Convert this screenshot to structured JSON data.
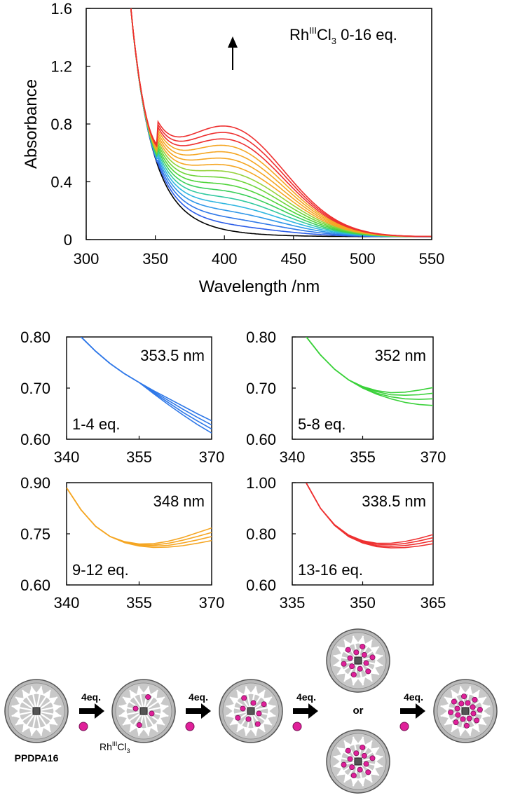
{
  "chart_data": [
    {
      "id": "main",
      "type": "line",
      "title": "",
      "xlabel": "Wavelength /nm",
      "ylabel": "Absorbance",
      "xlim": [
        300,
        550
      ],
      "ylim": [
        0,
        1.6
      ],
      "xticks": [
        300,
        350,
        400,
        450,
        500,
        550
      ],
      "yticks": [
        0,
        0.4,
        0.8,
        1.2,
        1.6
      ],
      "ytick_labels": [
        "0",
        "0.4",
        "0.8",
        "1.2",
        "1.6"
      ],
      "annotation": {
        "prefix": "Rh",
        "sup": "III",
        "mid": "Cl",
        "sub": "3",
        "suffix": " 0-16 eq."
      },
      "arrow": "up",
      "model": {
        "peak_nm": 404,
        "width_nm": 40,
        "base_peak_height": 0.0,
        "max_peak_height": 0.72,
        "iso_nm": 352,
        "iso_abs": 0.72
      },
      "series_count": 17,
      "colors": [
        "#000000",
        "#2a5ce8",
        "#2f78e8",
        "#2f97e8",
        "#2fb6e0",
        "#32c9a0",
        "#3bcf5a",
        "#4fd43a",
        "#6fd53a",
        "#95d23a",
        "#f5a623",
        "#f5a623",
        "#f5a623",
        "#f5a623",
        "#ee3030",
        "#ee3030",
        "#ee3030"
      ]
    },
    {
      "id": "inset1",
      "type": "line",
      "label": "353.5 nm",
      "range_label": "1-4 eq.",
      "xlim": [
        340,
        370
      ],
      "ylim": [
        0.6,
        0.8
      ],
      "xticks": [
        340,
        355,
        370
      ],
      "yticks": [
        0.6,
        0.7,
        0.8
      ],
      "ytick_labels": [
        "0.60",
        "0.70",
        "0.80"
      ],
      "color": "#2f78e8",
      "curves": [
        {
          "x": [
            343,
            346,
            349,
            352,
            355,
            358,
            361,
            364,
            367,
            370
          ],
          "y": [
            0.8,
            0.772,
            0.748,
            0.728,
            0.711,
            0.695,
            0.68,
            0.665,
            0.65,
            0.636
          ]
        },
        {
          "x": [
            343,
            346,
            349,
            352,
            355,
            358,
            361,
            364,
            367,
            370
          ],
          "y": [
            0.8,
            0.772,
            0.748,
            0.728,
            0.711,
            0.693,
            0.676,
            0.659,
            0.643,
            0.628
          ]
        },
        {
          "x": [
            343,
            346,
            349,
            352,
            355,
            358,
            361,
            364,
            367,
            370
          ],
          "y": [
            0.8,
            0.772,
            0.748,
            0.728,
            0.711,
            0.691,
            0.672,
            0.653,
            0.636,
            0.62
          ]
        },
        {
          "x": [
            343,
            346,
            349,
            352,
            355,
            358,
            361,
            364,
            367,
            370
          ],
          "y": [
            0.8,
            0.772,
            0.748,
            0.728,
            0.711,
            0.689,
            0.668,
            0.648,
            0.629,
            0.612
          ]
        }
      ]
    },
    {
      "id": "inset2",
      "type": "line",
      "label": "352 nm",
      "range_label": "5-8 eq.",
      "xlim": [
        340,
        370
      ],
      "ylim": [
        0.6,
        0.8
      ],
      "xticks": [
        340,
        355,
        370
      ],
      "yticks": [
        0.6,
        0.7,
        0.8
      ],
      "ytick_labels": [
        "0.60",
        "0.70",
        "0.80"
      ],
      "color": "#3ad13a",
      "curves": [
        {
          "x": [
            343,
            346,
            349,
            352,
            355,
            358,
            361,
            364,
            367,
            370
          ],
          "y": [
            0.8,
            0.765,
            0.737,
            0.716,
            0.703,
            0.695,
            0.691,
            0.692,
            0.696,
            0.701
          ]
        },
        {
          "x": [
            343,
            346,
            349,
            352,
            355,
            358,
            361,
            364,
            367,
            370
          ],
          "y": [
            0.8,
            0.765,
            0.737,
            0.716,
            0.702,
            0.693,
            0.687,
            0.686,
            0.687,
            0.69
          ]
        },
        {
          "x": [
            343,
            346,
            349,
            352,
            355,
            358,
            361,
            364,
            367,
            370
          ],
          "y": [
            0.8,
            0.765,
            0.737,
            0.716,
            0.701,
            0.69,
            0.683,
            0.679,
            0.678,
            0.679
          ]
        },
        {
          "x": [
            343,
            346,
            349,
            352,
            355,
            358,
            361,
            364,
            367,
            370
          ],
          "y": [
            0.8,
            0.765,
            0.737,
            0.716,
            0.7,
            0.688,
            0.679,
            0.672,
            0.668,
            0.666
          ]
        }
      ]
    },
    {
      "id": "inset3",
      "type": "line",
      "label": "348 nm",
      "range_label": "9-12 eq.",
      "xlim": [
        340,
        370
      ],
      "ylim": [
        0.6,
        0.9
      ],
      "xticks": [
        340,
        355,
        370
      ],
      "yticks": [
        0.6,
        0.75,
        0.9
      ],
      "ytick_labels": [
        "0.60",
        "0.75",
        "0.90"
      ],
      "color": "#f5a623",
      "curves": [
        {
          "x": [
            340,
            343,
            346,
            349,
            352,
            355,
            358,
            361,
            364,
            367,
            370
          ],
          "y": [
            0.885,
            0.82,
            0.772,
            0.742,
            0.727,
            0.72,
            0.721,
            0.728,
            0.739,
            0.753,
            0.767
          ]
        },
        {
          "x": [
            340,
            343,
            346,
            349,
            352,
            355,
            358,
            361,
            364,
            367,
            370
          ],
          "y": [
            0.885,
            0.82,
            0.772,
            0.742,
            0.726,
            0.718,
            0.717,
            0.722,
            0.731,
            0.742,
            0.754
          ]
        },
        {
          "x": [
            340,
            343,
            346,
            349,
            352,
            355,
            358,
            361,
            364,
            367,
            370
          ],
          "y": [
            0.885,
            0.82,
            0.772,
            0.742,
            0.725,
            0.716,
            0.714,
            0.716,
            0.723,
            0.732,
            0.742
          ]
        },
        {
          "x": [
            340,
            343,
            346,
            349,
            352,
            355,
            358,
            361,
            364,
            367,
            370
          ],
          "y": [
            0.885,
            0.82,
            0.772,
            0.742,
            0.724,
            0.714,
            0.71,
            0.711,
            0.715,
            0.722,
            0.73
          ]
        }
      ]
    },
    {
      "id": "inset4",
      "type": "line",
      "label": "338.5 nm",
      "range_label": "13-16 eq.",
      "xlim": [
        335,
        365
      ],
      "ylim": [
        0.6,
        1.0
      ],
      "xticks": [
        335,
        350,
        365
      ],
      "yticks": [
        0.6,
        0.8,
        1.0
      ],
      "ytick_labels": [
        "0.60",
        "0.80",
        "1.00"
      ],
      "color": "#ee3030",
      "curves": [
        {
          "x": [
            338,
            341,
            344,
            347,
            350,
            353,
            356,
            359,
            362,
            365
          ],
          "y": [
            0.998,
            0.9,
            0.836,
            0.795,
            0.773,
            0.763,
            0.763,
            0.77,
            0.782,
            0.797
          ]
        },
        {
          "x": [
            338,
            341,
            344,
            347,
            350,
            353,
            356,
            359,
            362,
            365
          ],
          "y": [
            0.998,
            0.9,
            0.835,
            0.793,
            0.77,
            0.759,
            0.757,
            0.762,
            0.772,
            0.785
          ]
        },
        {
          "x": [
            338,
            341,
            344,
            347,
            350,
            353,
            356,
            359,
            362,
            365
          ],
          "y": [
            0.998,
            0.9,
            0.834,
            0.791,
            0.767,
            0.754,
            0.751,
            0.754,
            0.762,
            0.773
          ]
        },
        {
          "x": [
            338,
            341,
            344,
            347,
            350,
            353,
            356,
            359,
            362,
            365
          ],
          "y": [
            0.998,
            0.9,
            0.833,
            0.789,
            0.764,
            0.75,
            0.745,
            0.746,
            0.752,
            0.761
          ]
        }
      ]
    }
  ],
  "scheme": {
    "start_label": "PPDPA16",
    "step_label": "4eq.",
    "reagent": {
      "prefix": "Rh",
      "sup": "III",
      "mid": "Cl",
      "sub": "3"
    },
    "or_label": "or",
    "steps": 4,
    "bound_counts": [
      0,
      4,
      8,
      12,
      16
    ]
  },
  "colors": {
    "dendrimer_fill": "#b8b8b8",
    "spoke": "#ffffff",
    "rh": "#e0209a",
    "reagent_text": "#cc2aa0"
  }
}
